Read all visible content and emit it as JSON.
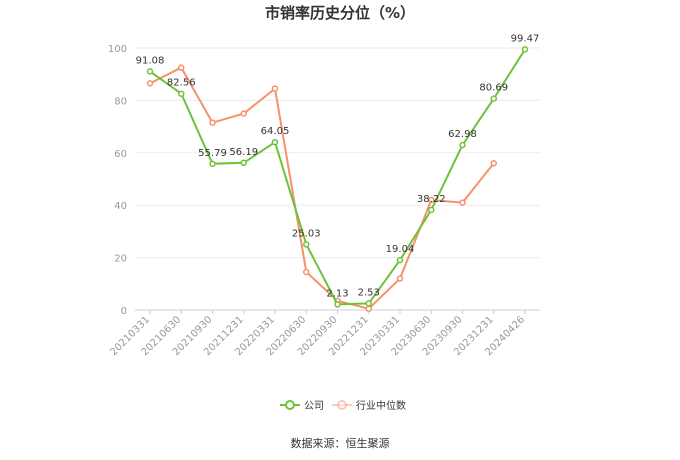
{
  "chart_data": {
    "type": "line",
    "title": "市销率历史分位（%）",
    "categories": [
      "20210331",
      "20210630",
      "20210930",
      "20211231",
      "20220331",
      "20220630",
      "20220930",
      "20221231",
      "20230331",
      "20230630",
      "20230930",
      "20231231",
      "20240426"
    ],
    "ylim": [
      0,
      100
    ],
    "yticks": [
      0,
      20,
      40,
      60,
      80,
      100
    ],
    "grid": true,
    "legend_position": "bottom-center",
    "series": [
      {
        "name": "公司",
        "color": "#6cc33a",
        "values": [
          91.08,
          82.56,
          55.79,
          56.19,
          64.05,
          25.03,
          2.13,
          2.53,
          19.04,
          38.22,
          62.98,
          80.69,
          99.47
        ],
        "labels": [
          "91.08",
          "82.56",
          "55.79",
          "56.19",
          "64.05",
          "25.03",
          "2.13",
          "2.53",
          "19.04",
          "38.22",
          "62.98",
          "80.69",
          "99.47"
        ]
      },
      {
        "name": "行业中位数",
        "color": "#f5916b",
        "values": [
          86.5,
          92.5,
          71.5,
          75.0,
          84.5,
          14.5,
          3.5,
          0.5,
          12.0,
          42.0,
          41.0,
          56.0,
          null
        ]
      }
    ]
  },
  "source": "数据来源：恒生聚源"
}
